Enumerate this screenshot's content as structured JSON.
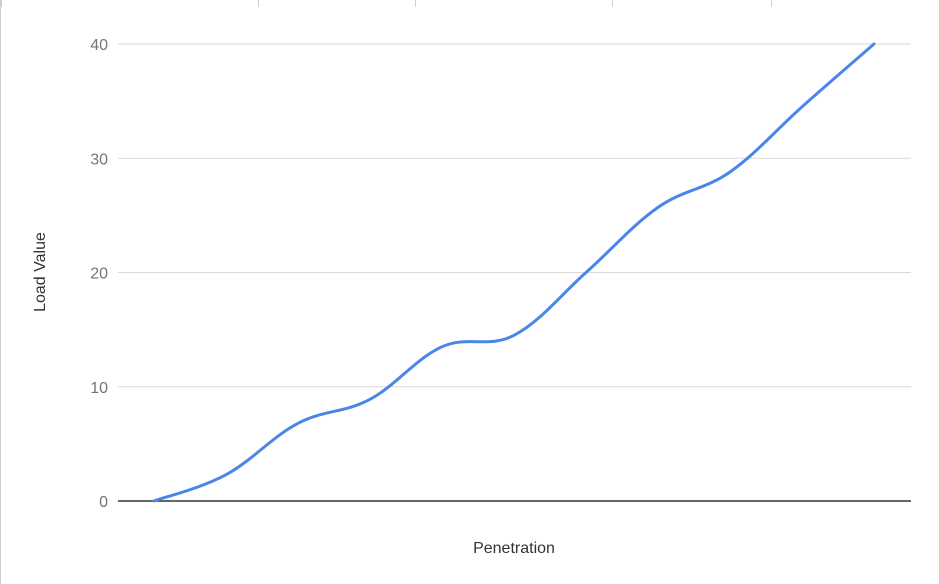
{
  "chart_data": {
    "type": "line",
    "xlabel": "Penetration",
    "ylabel": "Load Value",
    "ylim": [
      0,
      40
    ],
    "yticks": [
      "0",
      "10",
      "20",
      "30",
      "40"
    ],
    "grid": true,
    "colors": {
      "line": "#4a86e8",
      "grid": "#d9d9d9",
      "baseline": "#333333",
      "frame": "#cfcfcf"
    },
    "series": [
      {
        "values": [
          0,
          2.3,
          6.8,
          8.9,
          13.5,
          14.5,
          20.0,
          25.7,
          28.8,
          34.5,
          40.0
        ]
      }
    ]
  }
}
